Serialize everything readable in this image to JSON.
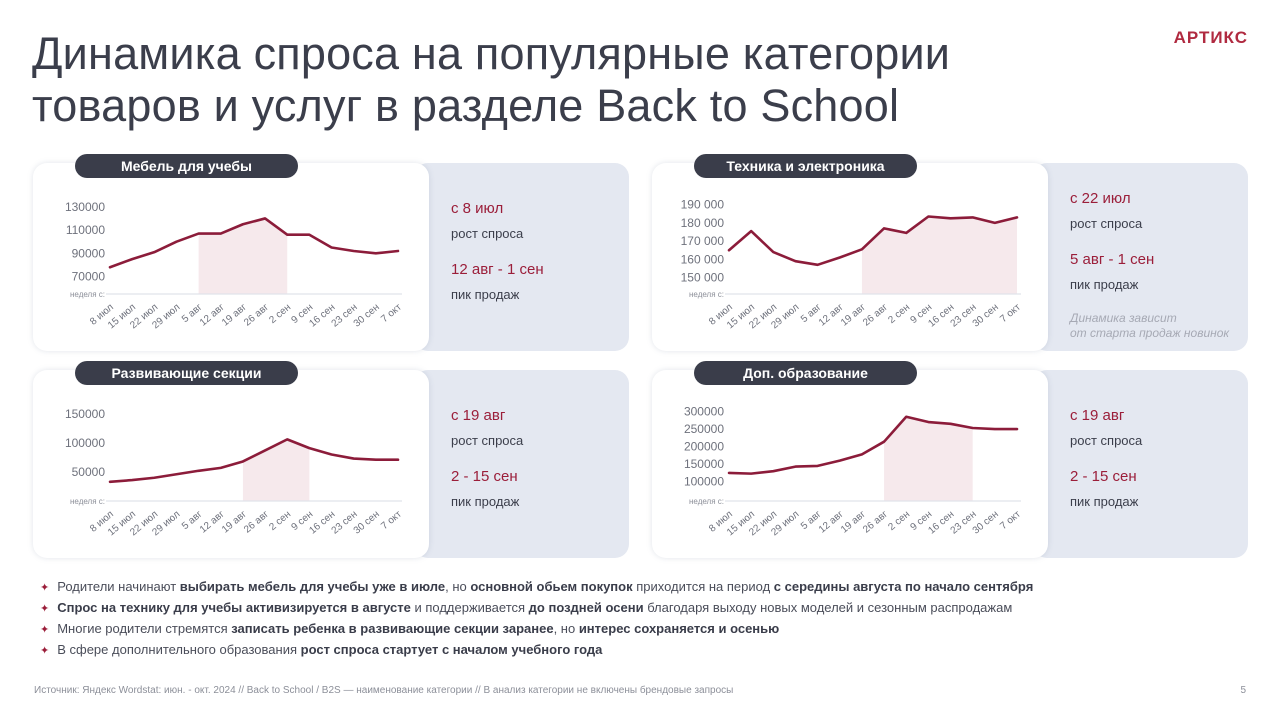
{
  "header": {
    "title_line1": "Динамика спроса на популярные категории",
    "title_line2": "товаров и услуг в разделе Back to School",
    "logo": "АРТИКС"
  },
  "cards": [
    {
      "label": "Мебель для учебы",
      "growth_date": "с 8 июл",
      "growth_label": "рост спроса",
      "peak_date": "12 авг - 1 сен",
      "peak_label": "пик продаж",
      "note": ""
    },
    {
      "label": "Техника и электроника",
      "growth_date": "с 22 июл",
      "growth_label": "рост спроса",
      "peak_date": "5 авг - 1 сен",
      "peak_label": "пик продаж",
      "note_line1": "Динамика зависит",
      "note_line2": "от старта продаж новинок"
    },
    {
      "label": "Развивающие секции",
      "growth_date": "с 19 авг",
      "growth_label": "рост спроса",
      "peak_date": "2 - 15 сен",
      "peak_label": "пик продаж",
      "note": ""
    },
    {
      "label": "Доп. образование",
      "growth_date": "с 19 авг",
      "growth_label": "рост спроса",
      "peak_date": "2 - 15 сен",
      "peak_label": "пик продаж",
      "note": ""
    }
  ],
  "chart_data": [
    {
      "type": "line",
      "title": "Мебель для учебы",
      "xlabel": "неделя с:",
      "categories": [
        "8 июл",
        "15 июл",
        "22 июл",
        "29 июл",
        "5 авг",
        "12 авг",
        "19 авг",
        "26 авг",
        "2 сен",
        "9 сен",
        "16 сен",
        "23 сен",
        "30 сен",
        "7 окт"
      ],
      "values": [
        78000,
        85000,
        91000,
        100000,
        107000,
        107000,
        115000,
        120000,
        106000,
        106000,
        95000,
        92000,
        90000,
        92000
      ],
      "yticks": [
        "130000",
        "110000",
        "90000",
        "70000"
      ],
      "ylim": [
        55000,
        135000
      ],
      "highlight": {
        "from": "5 авг",
        "to": "2 сен"
      },
      "color": "#8c1c3a"
    },
    {
      "type": "line",
      "title": "Техника и электроника",
      "xlabel": "неделя с:",
      "categories": [
        "8 июл",
        "15 июл",
        "22 июл",
        "29 июл",
        "5 авг",
        "12 авг",
        "19 авг",
        "26 авг",
        "2 сен",
        "9 сен",
        "16 сен",
        "23 сен",
        "30 сен",
        "7 окт"
      ],
      "values": [
        165000,
        175500,
        164000,
        159000,
        157000,
        161000,
        165500,
        177000,
        174500,
        183500,
        182500,
        183000,
        180000,
        183000
      ],
      "yticks": [
        "190 000",
        "180 000",
        "170 000",
        "160 000",
        "150 000"
      ],
      "ylim": [
        141000,
        192000
      ],
      "highlight": {
        "from": "19 авг",
        "to": "7 окт"
      },
      "color": "#8c1c3a"
    },
    {
      "type": "line",
      "title": "Развивающие секции",
      "xlabel": "неделя с:",
      "categories": [
        "8 июл",
        "15 июл",
        "22 июл",
        "29 июл",
        "5 авг",
        "12 авг",
        "19 авг",
        "26 авг",
        "2 сен",
        "9 сен",
        "16 сен",
        "23 сен",
        "30 сен",
        "7 окт"
      ],
      "values": [
        33000,
        36000,
        40000,
        46000,
        52000,
        57000,
        68000,
        87000,
        106000,
        91000,
        80000,
        73000,
        71000,
        71000
      ],
      "yticks": [
        "150000",
        "100000",
        "50000"
      ],
      "ylim": [
        0,
        160000
      ],
      "highlight": {
        "from": "19 авг",
        "to": "9 сен"
      },
      "color": "#8c1c3a"
    },
    {
      "type": "line",
      "title": "Доп. образование",
      "xlabel": "неделя с:",
      "categories": [
        "8 июл",
        "15 июл",
        "22 июл",
        "29 июл",
        "5 авг",
        "12 авг",
        "19 авг",
        "26 авг",
        "2 сен",
        "9 сен",
        "16 сен",
        "23 сен",
        "30 сен",
        "7 окт"
      ],
      "values": [
        125000,
        123000,
        130000,
        143000,
        145000,
        160000,
        178000,
        214000,
        285000,
        270000,
        265000,
        253000,
        250000,
        250000
      ],
      "yticks": [
        "300000",
        "250000",
        "200000",
        "150000",
        "100000"
      ],
      "ylim": [
        45000,
        310000
      ],
      "highlight": {
        "from": "26 авг",
        "to": "23 сен"
      },
      "color": "#8c1c3a"
    }
  ],
  "bullets": [
    [
      {
        "t": "Родители начинают ",
        "b": false
      },
      {
        "t": "выбирать мебель для учебы уже в июле",
        "b": true
      },
      {
        "t": ", но ",
        "b": false
      },
      {
        "t": "основной обьем покупок",
        "b": true
      },
      {
        "t": " приходится на период ",
        "b": false
      },
      {
        "t": "с середины августа по начало сентября",
        "b": true
      }
    ],
    [
      {
        "t": "Спрос на технику для учебы активизируется в августе",
        "b": true
      },
      {
        "t": " и поддерживается ",
        "b": false
      },
      {
        "t": "до поздней осени",
        "b": true
      },
      {
        "t": " благодаря выходу новых моделей и сезонным распродажам",
        "b": false
      }
    ],
    [
      {
        "t": "Многие родители стремятся ",
        "b": false
      },
      {
        "t": "записать ребенка в развивающие секции заранее",
        "b": true
      },
      {
        "t": ", но ",
        "b": false
      },
      {
        "t": "интерес сохраняется и осенью",
        "b": true
      }
    ],
    [
      {
        "t": "В сфере дополнительного образования ",
        "b": false
      },
      {
        "t": "рост спроса стартует с началом учебного года",
        "b": true
      }
    ]
  ],
  "footer": {
    "source": "Источник: Яндекс Wordstat: июн. - окт. 2024  //  Back to School / B2S — наименование категории  //  В анализ категории не включены брендовые запросы",
    "page": "5"
  }
}
